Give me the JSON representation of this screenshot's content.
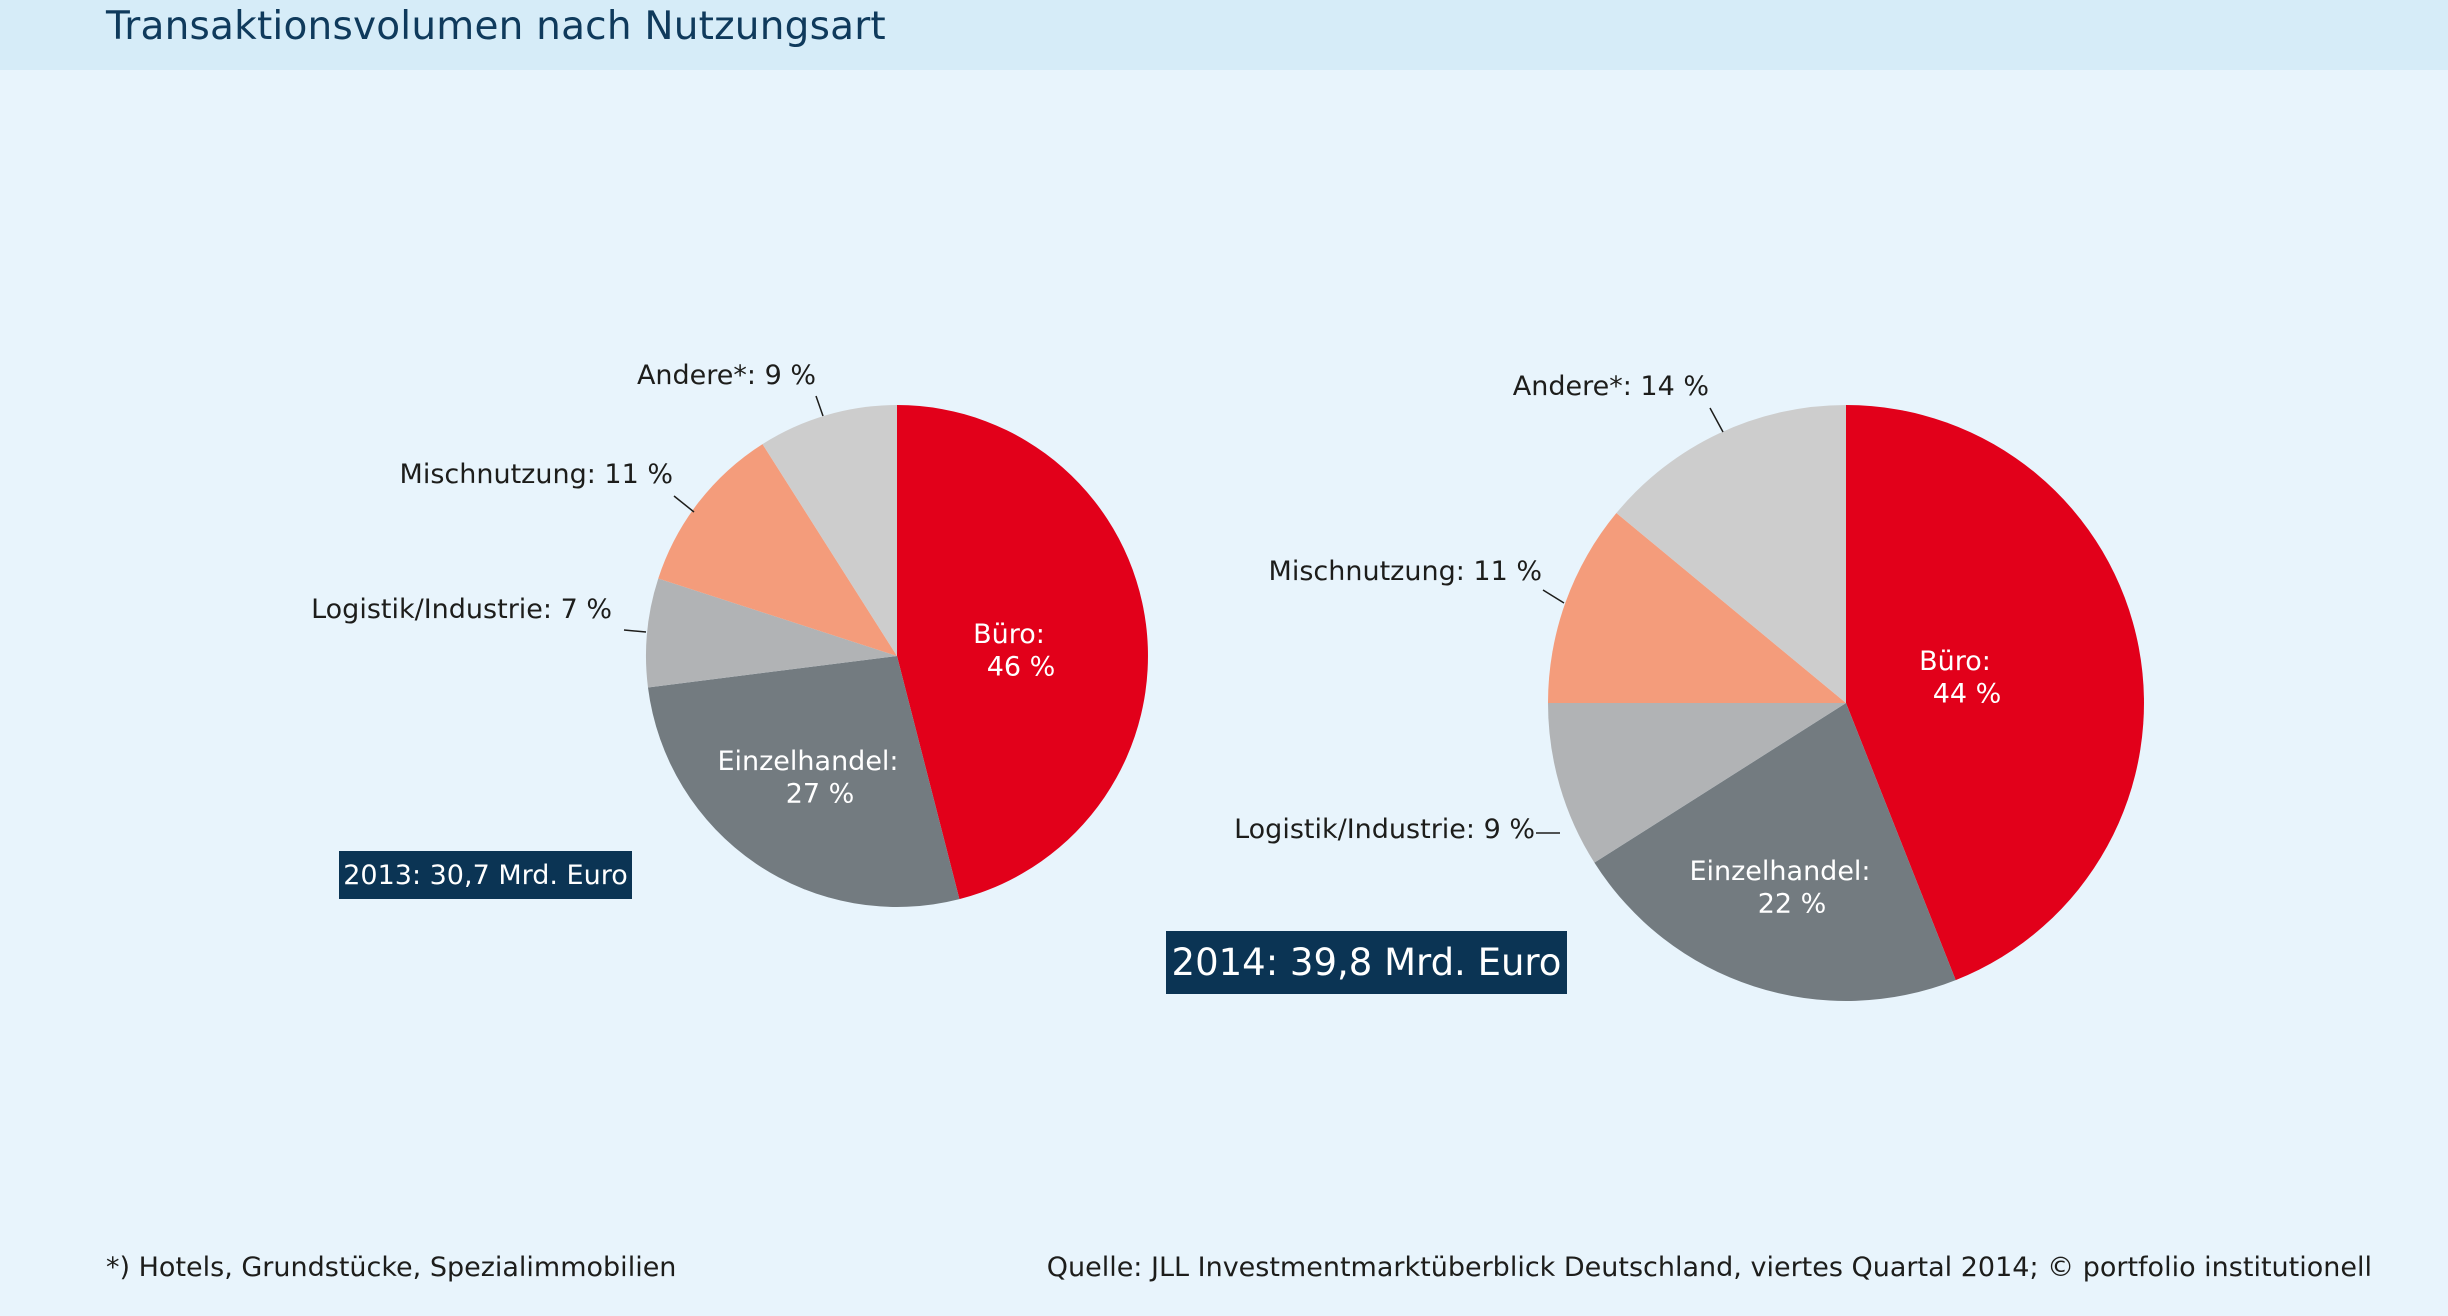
{
  "header": {
    "title": "Transaktionsvolumen nach Nutzungsart"
  },
  "colors": {
    "buero": "#e2001a",
    "einzelhandel": "#737b80",
    "logistik": "#b1b3b5",
    "mischnutzung": "#f49c7b",
    "andere": "#cdcdcd",
    "total_box": "#0b3454",
    "background": "#e8f4fc"
  },
  "chart_data": [
    {
      "type": "pie",
      "year": "2013",
      "total_label": "2013: 30,7 Mrd. Euro",
      "slices": [
        {
          "name": "Büro",
          "value": 46,
          "label_line1": "Büro:",
          "label_line2": "46 %",
          "color": "#e2001a",
          "label_position": "inside"
        },
        {
          "name": "Einzelhandel",
          "value": 27,
          "label_line1": "Einzelhandel:",
          "label_line2": "27 %",
          "color": "#737b80",
          "label_position": "inside"
        },
        {
          "name": "Logistik/Industrie",
          "value": 7,
          "label": "Logistik/Industrie: 7 %",
          "color": "#b1b3b5",
          "label_position": "outside"
        },
        {
          "name": "Mischnutzung",
          "value": 11,
          "label": "Mischnutzung: 11 %",
          "color": "#f49c7b",
          "label_position": "outside"
        },
        {
          "name": "Andere*",
          "value": 9,
          "label": "Andere*: 9 %",
          "color": "#cdcdcd",
          "label_position": "outside"
        }
      ]
    },
    {
      "type": "pie",
      "year": "2014",
      "total_label": "2014: 39,8 Mrd. Euro",
      "slices": [
        {
          "name": "Büro",
          "value": 44,
          "label_line1": "Büro:",
          "label_line2": "44 %",
          "color": "#e2001a",
          "label_position": "inside"
        },
        {
          "name": "Einzelhandel",
          "value": 22,
          "label_line1": "Einzelhandel:",
          "label_line2": "22 %",
          "color": "#737b80",
          "label_position": "inside"
        },
        {
          "name": "Logistik/Industrie",
          "value": 9,
          "label": "Logistik/Industrie: 9 %",
          "color": "#b1b3b5",
          "label_position": "outside"
        },
        {
          "name": "Mischnutzung",
          "value": 11,
          "label": "Mischnutzung: 11 %",
          "color": "#f49c7b",
          "label_position": "outside"
        },
        {
          "name": "Andere*",
          "value": 14,
          "label": "Andere*: 14 %",
          "color": "#cdcdcd",
          "label_position": "outside"
        }
      ]
    }
  ],
  "footer": {
    "footnote": "*) Hotels, Grundstücke, Spezialimmobilien",
    "source": "Quelle: JLL Investmentmarktüberblick Deutschland, viertes Quartal 2014; © portfolio institutionell"
  }
}
